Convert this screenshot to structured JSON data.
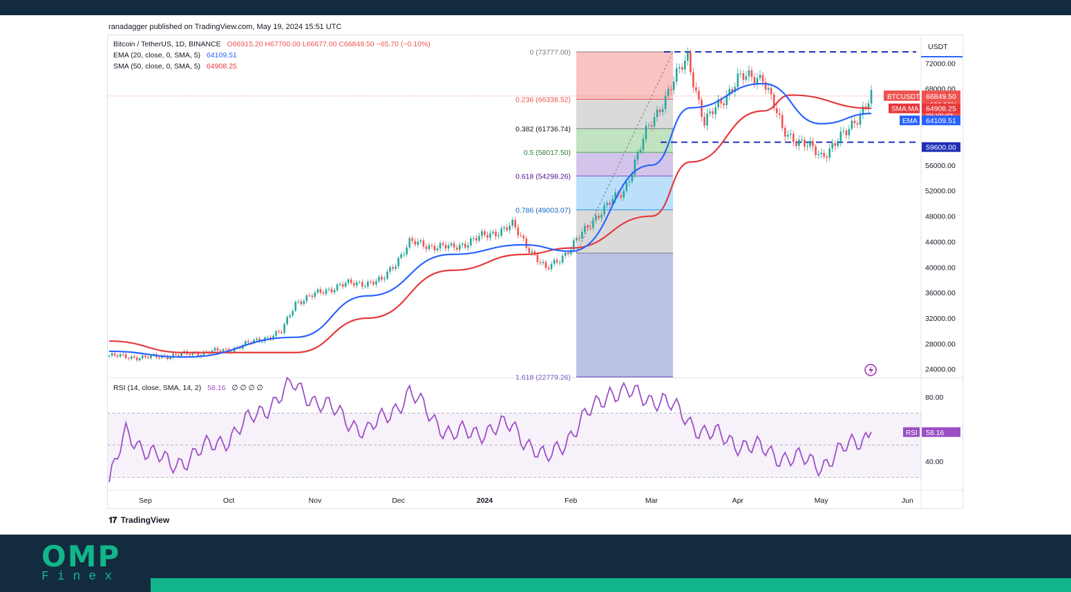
{
  "header": {
    "published": "ranadagger published on TradingView.com, May 19, 2024 15:51 UTC"
  },
  "legend": {
    "symbol": "Bitcoin / TetherUS, 1D, BINANCE",
    "ohlc": "O66915.20  H67700.00  L66677.00  C66849.50  −65.70 (−0.10%)",
    "ema_label": "EMA (20, close, 0, SMA, 5)",
    "ema_value": "64109.51",
    "sma_label": "SMA (50, close, 0, SMA, 5)",
    "sma_value": "64908.25",
    "rsi_label": "RSI (14, close, SMA, 14, 2)",
    "rsi_value": "58.16",
    "rsi_extra": "∅ ∅ ∅ ∅"
  },
  "colors": {
    "up": "#26a69a",
    "down": "#ef5350",
    "ema": "#2962ff",
    "sma": "#e5383b",
    "rsi": "#9c4fc5",
    "level": "#1e2fb5",
    "logo": "#13b58b",
    "navy": "#122b3e"
  },
  "footer": {
    "tradingview": "TradingView"
  },
  "logo": {
    "top": "OMP",
    "bottom": "Finex"
  },
  "chart_data": {
    "type": "line",
    "title": "Bitcoin / TetherUS, 1D, BINANCE",
    "currency": "USDT",
    "x_ticks": [
      "Sep",
      "Oct",
      "Nov",
      "Dec",
      "2024",
      "Feb",
      "Mar",
      "Apr",
      "May",
      "Jun"
    ],
    "y_ticks": [
      "72000.00",
      "68000.00",
      "64000.00",
      "56000.00",
      "52000.00",
      "48000.00",
      "44000.00",
      "40000.00",
      "36000.00",
      "32000.00",
      "28000.00",
      "24000.00"
    ],
    "ylim": [
      22779,
      73777
    ],
    "price_approx": {
      "x": [
        "2023-08-19",
        "2023-09-01",
        "2023-09-15",
        "2023-10-01",
        "2023-10-20",
        "2023-10-25",
        "2023-11-10",
        "2023-11-25",
        "2023-12-05",
        "2023-12-20",
        "2024-01-11",
        "2024-01-23",
        "2024-02-01",
        "2024-02-10",
        "2024-02-20",
        "2024-02-28",
        "2024-03-05",
        "2024-03-14",
        "2024-03-20",
        "2024-04-01",
        "2024-04-10",
        "2024-04-17",
        "2024-05-01",
        "2024-05-10",
        "2024-05-19"
      ],
      "y": [
        26100,
        25800,
        26300,
        27000,
        29800,
        34500,
        37200,
        37800,
        43800,
        43000,
        46500,
        39500,
        43000,
        48000,
        52000,
        61000,
        66000,
        73000,
        62500,
        69500,
        70000,
        61500,
        57500,
        61000,
        66849.5
      ]
    },
    "ema_20_approx": {
      "x": [
        "2023-08-19",
        "2023-09-15",
        "2023-10-25",
        "2023-11-20",
        "2023-12-20",
        "2024-01-15",
        "2024-02-01",
        "2024-03-01",
        "2024-03-15",
        "2024-04-10",
        "2024-05-01",
        "2024-05-19"
      ],
      "y": [
        26800,
        25900,
        29000,
        35500,
        42000,
        43500,
        42500,
        56000,
        65000,
        68800,
        62500,
        64109.51
      ]
    },
    "sma_50_approx": {
      "x": [
        "2023-08-19",
        "2023-09-15",
        "2023-10-25",
        "2023-11-20",
        "2023-12-20",
        "2024-01-15",
        "2024-02-01",
        "2024-03-01",
        "2024-03-15",
        "2024-04-10",
        "2024-04-20",
        "2024-05-19"
      ],
      "y": [
        28400,
        26600,
        26600,
        32000,
        39500,
        42000,
        43000,
        48000,
        56500,
        64500,
        67000,
        64908.25
      ]
    },
    "rsi_approx": {
      "x": [
        "2023-08-19",
        "2023-08-25",
        "2023-09-10",
        "2023-10-01",
        "2023-10-24",
        "2023-11-20",
        "2023-12-05",
        "2023-12-20",
        "2024-01-11",
        "2024-01-23",
        "2024-02-15",
        "2024-03-05",
        "2024-03-20",
        "2024-04-15",
        "2024-05-01",
        "2024-05-19"
      ],
      "y": [
        27,
        57,
        37,
        55,
        87,
        58,
        82,
        56,
        62,
        40,
        84,
        78,
        58,
        44,
        38,
        58.16
      ]
    },
    "rsi_y_ticks": [
      "80.00",
      "40.00"
    ],
    "rsi_value_tag": "58.16",
    "fibonacci": [
      {
        "label": "0 (73777.00)"
      },
      {
        "label": "0.236 (66338.52)"
      },
      {
        "label": "0.382 (61736.74)"
      },
      {
        "label": "0.5 (58017.50)"
      },
      {
        "label": "0.618 (54298.26)"
      },
      {
        "label": "0.786 (49003.07)"
      },
      {
        "label": "1.618 (22779.26)"
      }
    ],
    "horizontal_levels": [
      73777,
      59600
    ],
    "price_tags": {
      "symbol": "BTCUSDT",
      "last": "66849.50",
      "change": "+156.56%",
      "countdown": "08:08:34",
      "sma_name": "SMA:MA",
      "sma": "64908.25",
      "ema_name": "EMA",
      "ema": "64109.51",
      "support": "59600.00"
    },
    "rsi_tag_name": "RSI"
  }
}
